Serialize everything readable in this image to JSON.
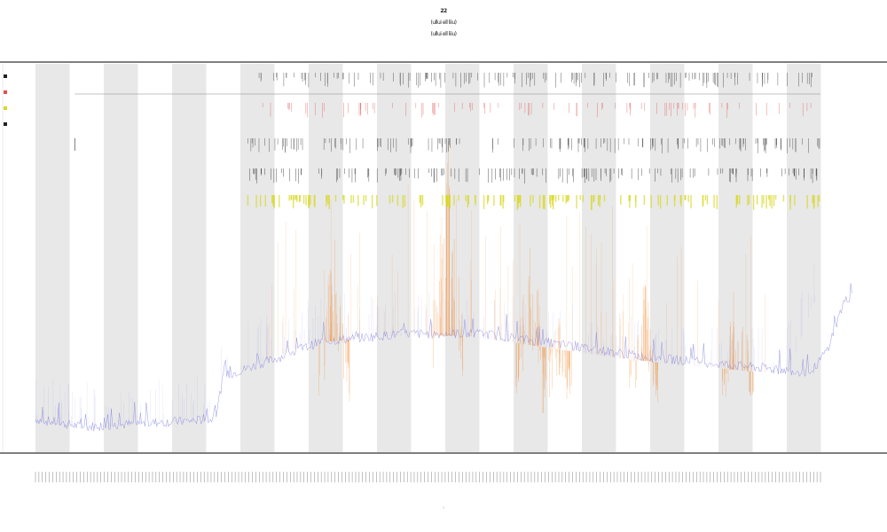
{
  "chart_data": {
    "type": "line",
    "title_lines": [
      "22",
      "(ullui ell liiu)",
      "(ullui ell liiu)"
    ],
    "x_tick_count": 229,
    "y_range": [
      0,
      1
    ],
    "grid": false,
    "shaded_bands": "alternating",
    "series": [
      {
        "color": "#8080e0",
        "baseline_profile": [
          [
            0,
            0.08
          ],
          [
            0.06,
            0.06
          ],
          [
            0.22,
            0.08
          ],
          [
            0.23,
            0.19
          ],
          [
            0.3,
            0.24
          ],
          [
            0.35,
            0.28
          ],
          [
            0.45,
            0.3
          ],
          [
            0.55,
            0.3
          ],
          [
            0.65,
            0.27
          ],
          [
            0.75,
            0.24
          ],
          [
            0.85,
            0.22
          ],
          [
            0.95,
            0.2
          ],
          [
            0.97,
            0.26
          ],
          [
            0.99,
            0.38
          ],
          [
            1.0,
            0.4
          ]
        ]
      },
      {
        "color": "#f08020",
        "peaks": [
          {
            "x": 0.38,
            "height": 0.57
          },
          {
            "x": 0.525,
            "height": 0.85
          },
          {
            "x": 0.63,
            "height": 0.57
          },
          {
            "x": 0.775,
            "height": 0.48
          },
          {
            "x": 0.895,
            "height": 0.5
          },
          {
            "x": 0.665,
            "height": 0.4
          }
        ]
      }
    ],
    "tracks": [
      {
        "color": "#222222"
      },
      {
        "color": "#e05050"
      },
      {
        "color": "#222222"
      },
      {
        "color": "#111111"
      },
      {
        "color": "#d8d820"
      }
    ],
    "legend": [
      {
        "color": "#222222"
      },
      {
        "color": "#e05050"
      },
      {
        "color": "#d8d820"
      },
      {
        "color": "#222222"
      }
    ]
  },
  "colors": {
    "band": "#e8e8e8",
    "axis": "#333333"
  },
  "bottom_label": "|"
}
